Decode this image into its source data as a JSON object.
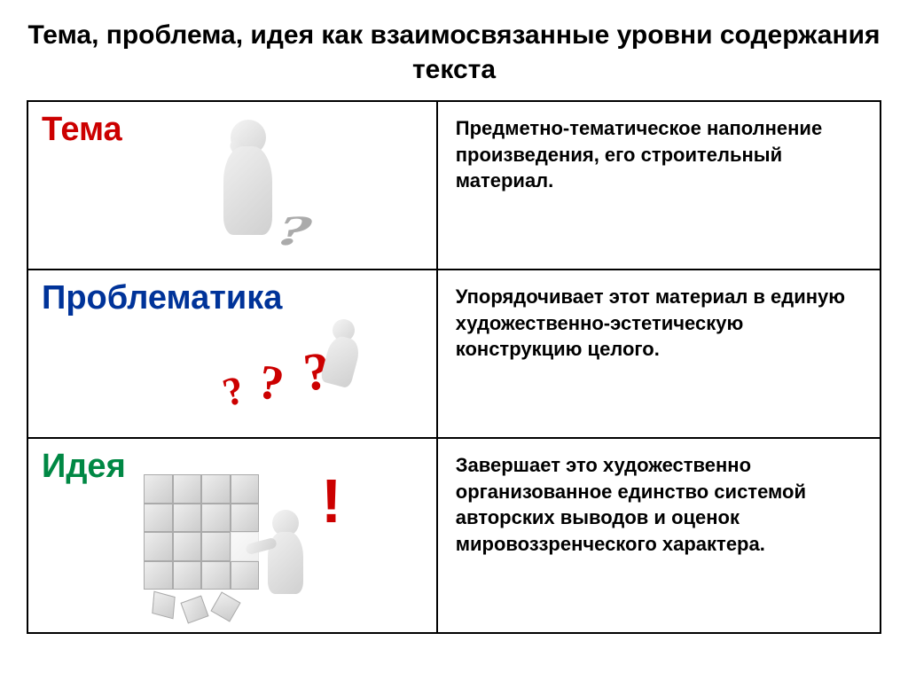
{
  "title": "Тема, проблема, идея как взаимосвязанные уровни содержания текста",
  "rows": [
    {
      "term": "Тема",
      "term_color": "#cc0000",
      "description": "Предметно-тематическое наполнение произведения, его строительный материал.",
      "icon": "thinking-figure-question-shadow"
    },
    {
      "term": "Проблематика",
      "term_color": "#003399",
      "description": "Упорядочивает этот материал в единую художественно-эстетическую конструкцию целого.",
      "icon": "figure-climbing-red-questions"
    },
    {
      "term": "Идея",
      "term_color": "#008844",
      "description": "Завершает это художественно организованное единство системой авторских выводов и оценок мировоззренческого характера.",
      "icon": "figure-puzzle-exclamation"
    }
  ],
  "colors": {
    "title": "#000000",
    "border": "#000000",
    "background": "#ffffff",
    "description_text": "#000000",
    "accent_red": "#cc0000",
    "shadow_gray": "#888888",
    "figure_light": "#f0f0f0",
    "figure_dark": "#d0d0d0"
  },
  "typography": {
    "title_fontsize": 30,
    "term_fontsize": 38,
    "description_fontsize": 22,
    "font_family": "Arial"
  },
  "layout": {
    "rows": 3,
    "columns": 2,
    "term_col_width_pct": 48,
    "desc_col_width_pct": 52
  }
}
